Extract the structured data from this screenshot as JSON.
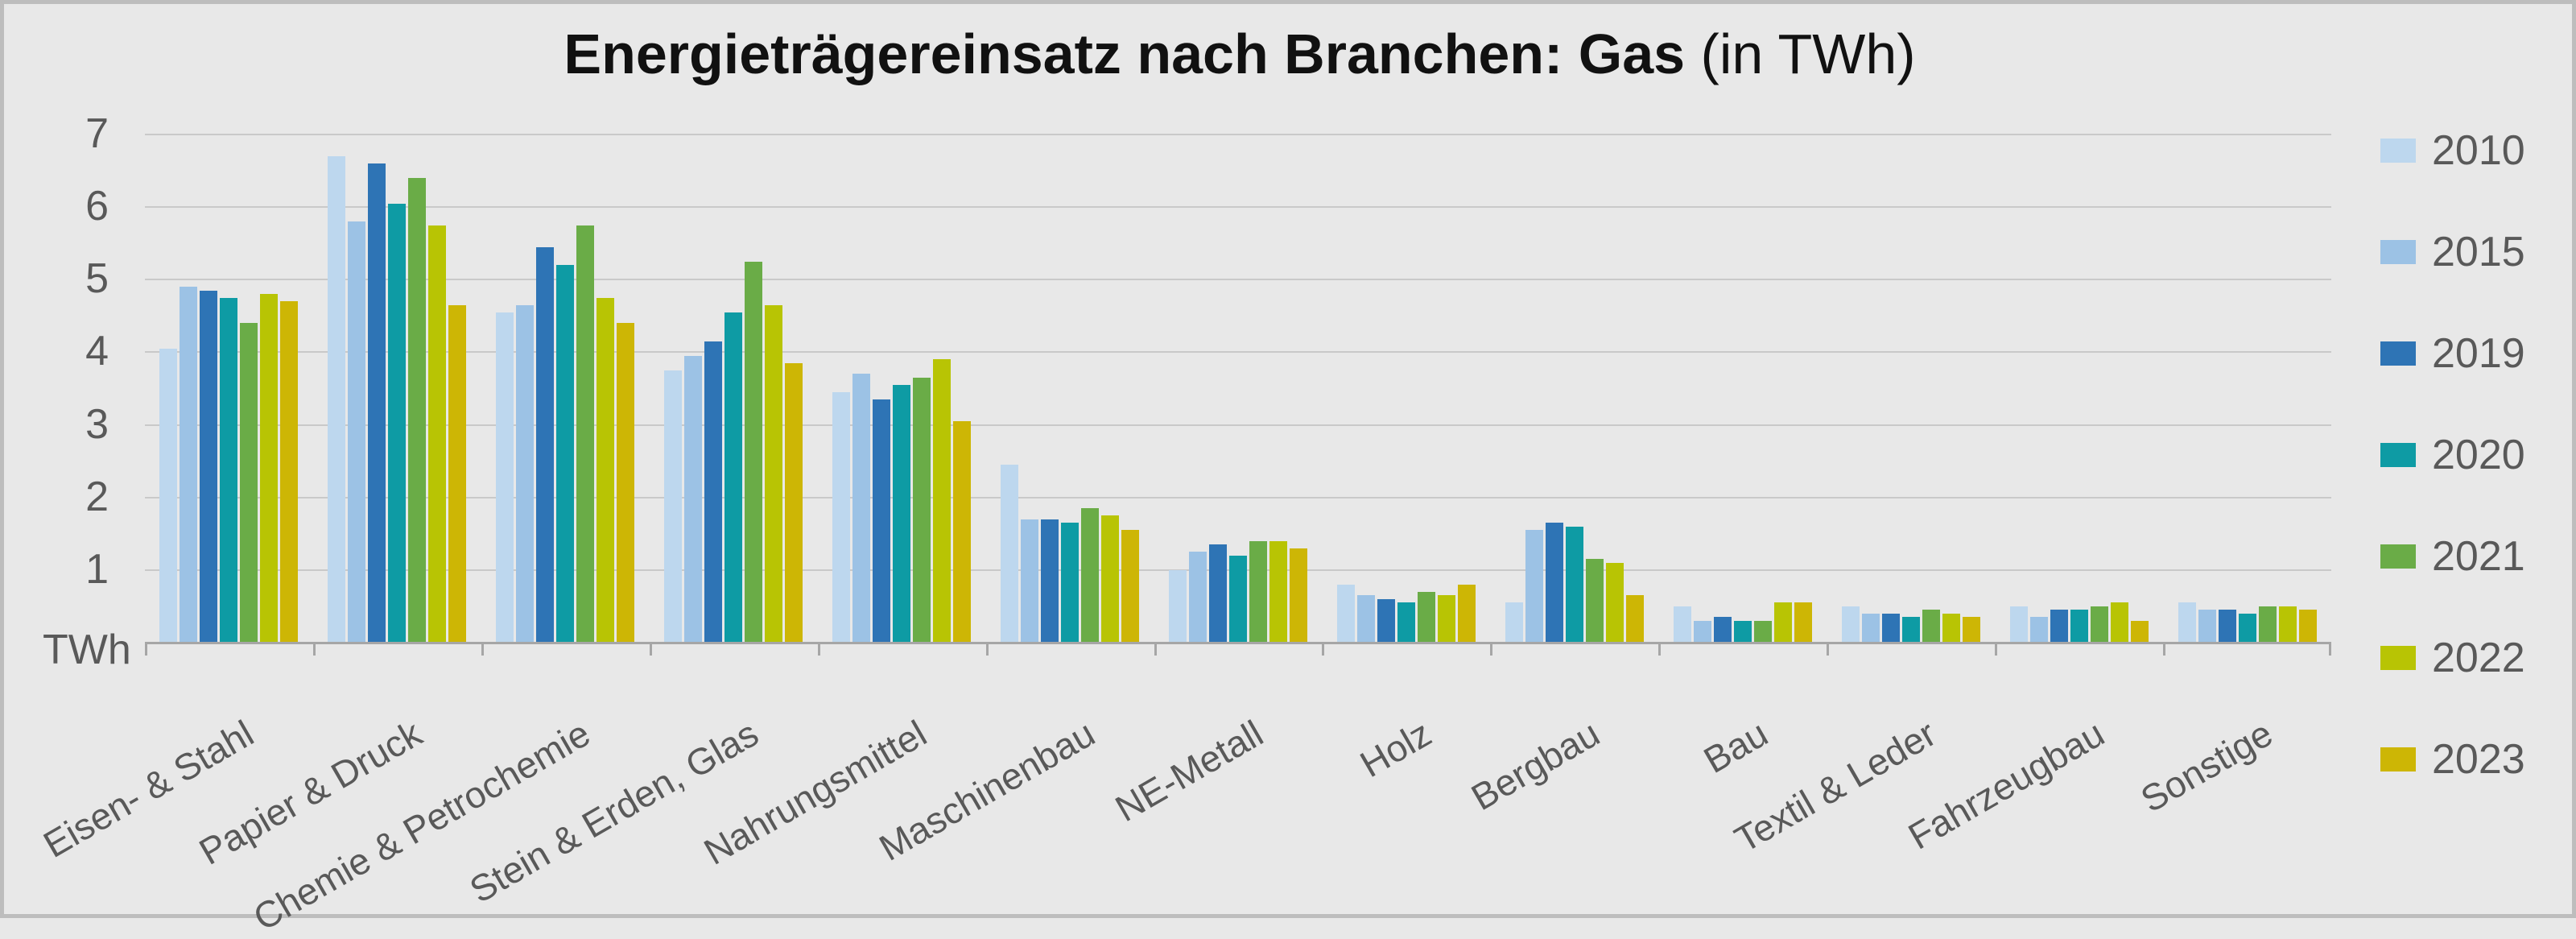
{
  "window": {
    "background": "#e8e8e8",
    "border_color": "#bdbdbd"
  },
  "header": {
    "title_bold": "Energieträgereinsatz nach Branchen: Gas",
    "title_regular": " (in TWh)"
  },
  "y_axis": {
    "unit_label": "TWh",
    "tick_labels": [
      "7",
      "6",
      "5",
      "4",
      "3",
      "2",
      "1"
    ]
  },
  "styles": {
    "gridline_color": "#c9c9c9",
    "axis_color": "#a6a6a6",
    "axis_text_color": "#595959",
    "title_color": "#111111"
  },
  "chart_data": {
    "type": "bar",
    "title": "Energieträgereinsatz nach Branchen: Gas (in TWh)",
    "xlabel": "",
    "ylabel": "TWh",
    "ylim": [
      0,
      7
    ],
    "grid": true,
    "legend_position": "right",
    "categories": [
      "Eisen- & Stahl",
      "Papier & Druck",
      "Chemie & Petrochemie",
      "Stein & Erden, Glas",
      "Nahrungsmittel",
      "Maschinenbau",
      "NE-Metall",
      "Holz",
      "Bergbau",
      "Bau",
      "Textil & Leder",
      "Fahrzeugbau",
      "Sonstige"
    ],
    "series": [
      {
        "name": "2010",
        "color": "#BDD7EE",
        "values": [
          4.05,
          6.7,
          4.55,
          3.75,
          3.45,
          2.45,
          1.0,
          0.8,
          0.55,
          0.5,
          0.5,
          0.5,
          0.55
        ]
      },
      {
        "name": "2015",
        "color": "#9CC2E5",
        "values": [
          4.9,
          5.8,
          4.65,
          3.95,
          3.7,
          1.7,
          1.25,
          0.65,
          1.55,
          0.3,
          0.4,
          0.35,
          0.45
        ]
      },
      {
        "name": "2019",
        "color": "#2E74B5",
        "values": [
          4.85,
          6.6,
          5.45,
          4.15,
          3.35,
          1.7,
          1.35,
          0.6,
          1.65,
          0.35,
          0.4,
          0.45,
          0.45
        ]
      },
      {
        "name": "2020",
        "color": "#0E9BA4",
        "values": [
          4.75,
          6.05,
          5.2,
          4.55,
          3.55,
          1.65,
          1.2,
          0.55,
          1.6,
          0.3,
          0.35,
          0.45,
          0.4
        ]
      },
      {
        "name": "2021",
        "color": "#6AAC47",
        "values": [
          4.4,
          6.4,
          5.75,
          5.25,
          3.65,
          1.85,
          1.4,
          0.7,
          1.15,
          0.3,
          0.45,
          0.5,
          0.5
        ]
      },
      {
        "name": "2022",
        "color": "#B8C404",
        "values": [
          4.8,
          5.75,
          4.75,
          4.65,
          3.9,
          1.75,
          1.4,
          0.65,
          1.1,
          0.55,
          0.4,
          0.55,
          0.5
        ]
      },
      {
        "name": "2023",
        "color": "#CDB605",
        "values": [
          4.7,
          4.65,
          4.4,
          3.85,
          3.05,
          1.55,
          1.3,
          0.8,
          0.65,
          0.55,
          0.35,
          0.3,
          0.45
        ]
      }
    ]
  }
}
